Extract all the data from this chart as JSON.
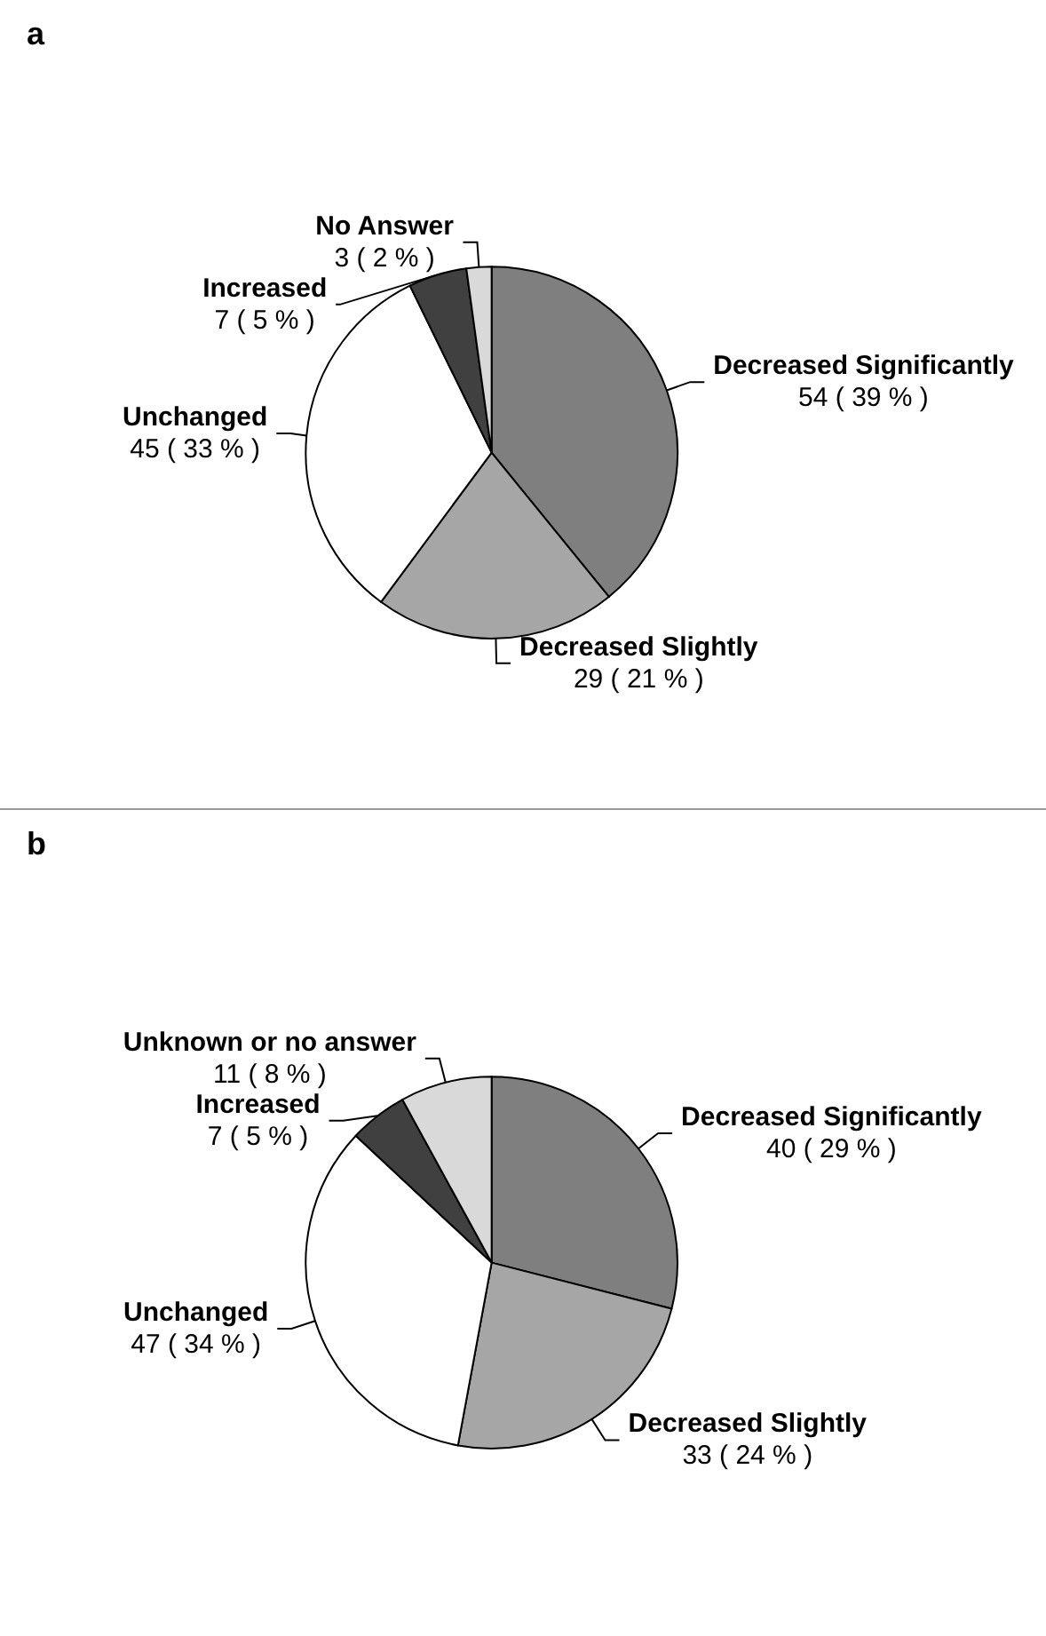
{
  "chart_data": [
    {
      "type": "pie",
      "title": "a",
      "categories": [
        "Decreased Significantly",
        "Decreased Slightly",
        "Unchanged",
        "Increased",
        "No Answer"
      ],
      "values": [
        54,
        29,
        45,
        7,
        3
      ],
      "value_labels": [
        "54 ( 39 % )",
        "29 ( 21 % )",
        "45 ( 33 % )",
        "7 ( 5 % )",
        "3 ( 2 % )"
      ],
      "colors": [
        "#7f7f7f",
        "#a6a6a6",
        "#ffffff",
        "#404040",
        "#d9d9d9"
      ],
      "legend": false
    },
    {
      "type": "pie",
      "title": "b",
      "categories": [
        "Decreased Significantly",
        "Decreased Slightly",
        "Unchanged",
        "Increased",
        "Unknown or no answer"
      ],
      "values": [
        40,
        33,
        47,
        7,
        11
      ],
      "value_labels": [
        "40 ( 29 % )",
        "33 ( 24 % )",
        "47 ( 34 % )",
        "7 ( 5 % )",
        "11 ( 8 % )"
      ],
      "colors": [
        "#7f7f7f",
        "#a6a6a6",
        "#ffffff",
        "#404040",
        "#d9d9d9"
      ],
      "legend": false
    }
  ]
}
